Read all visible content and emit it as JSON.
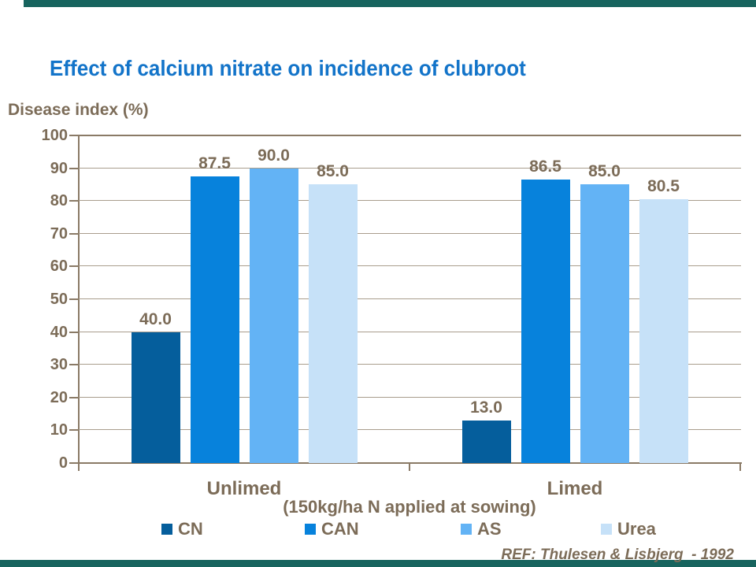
{
  "slide": {
    "accent_bar_color": "#17645E",
    "background_color": "#FFFFFF"
  },
  "chart_data": {
    "type": "bar",
    "title": "Effect of calcium nitrate on incidence of clubroot",
    "ylabel": "Disease index (%)",
    "xlabel": "(150kg/ha N applied at sowing)",
    "categories": [
      "Unlimed",
      "Limed"
    ],
    "series": [
      {
        "name": "CN",
        "color": "#055E9C",
        "values": [
          40.0,
          13.0
        ]
      },
      {
        "name": "CAN",
        "color": "#0782DC",
        "values": [
          87.5,
          86.5
        ]
      },
      {
        "name": "AS",
        "color": "#63B3F5",
        "values": [
          90.0,
          85.0
        ]
      },
      {
        "name": "Urea",
        "color": "#C6E1F8",
        "values": [
          85.0,
          80.5
        ]
      }
    ],
    "value_labels": [
      [
        "40.0",
        "13.0"
      ],
      [
        "87.5",
        "86.5"
      ],
      [
        "90.0",
        "85.0"
      ],
      [
        "85.0",
        "80.5"
      ]
    ],
    "ylim": [
      0,
      100
    ],
    "ytick_step": 10,
    "grid": true,
    "legend_position": "bottom",
    "reference": "REF: Thulesen & Lisbjerg  - 1992",
    "colors": {
      "title_text": "#1374C9",
      "axis_text": "#7C6C58",
      "gridline": "#A99D8D",
      "axis_line": "#8A7A66"
    }
  }
}
